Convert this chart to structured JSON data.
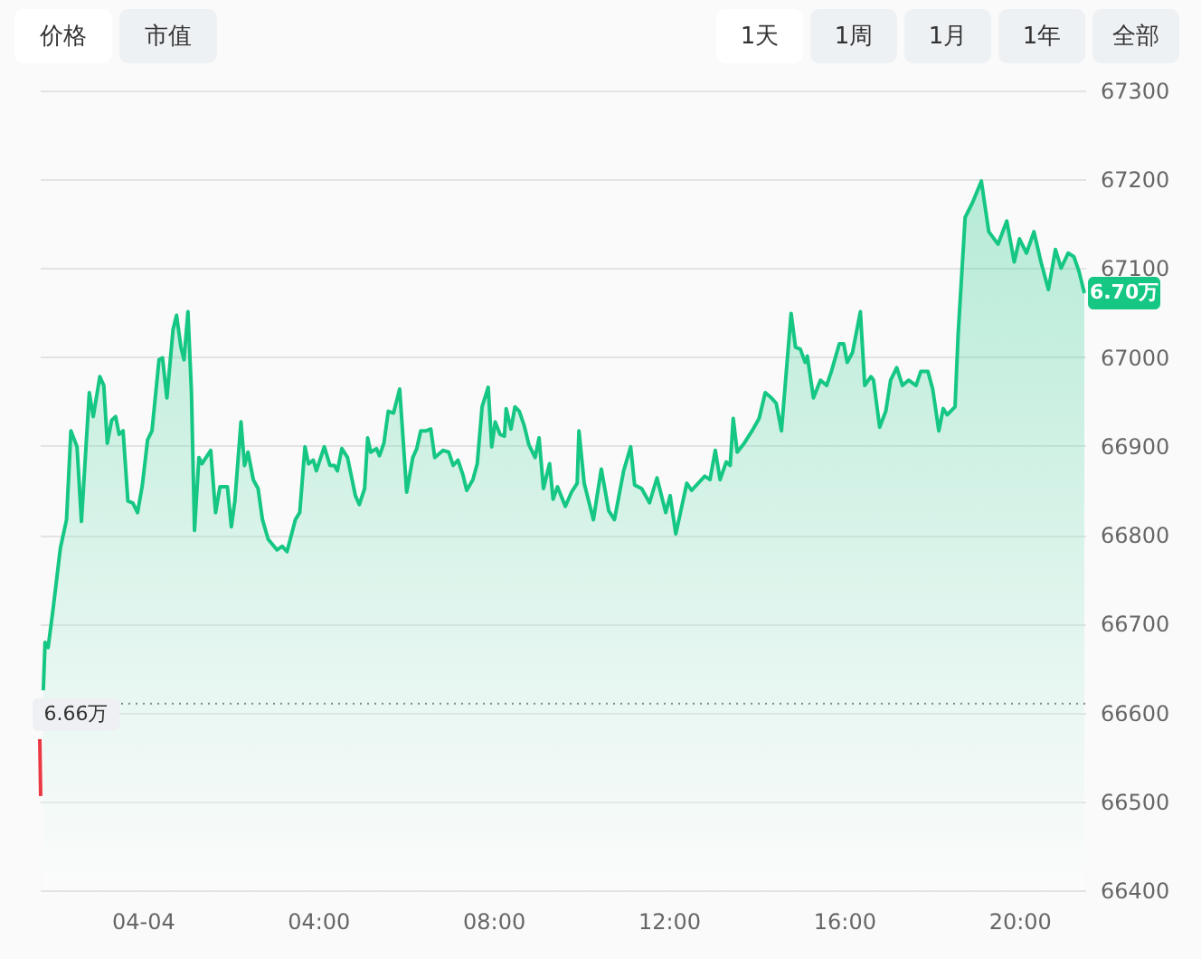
{
  "chart_data": {
    "type": "area",
    "grid": "y",
    "xlim": [
      -2.35,
      21.5
    ],
    "ylim": [
      66400,
      67300
    ],
    "xticks": [
      {
        "value": 0,
        "label": "04-04"
      },
      {
        "value": 4,
        "label": "04:00"
      },
      {
        "value": 8,
        "label": "08:00"
      },
      {
        "value": 12,
        "label": "12:00"
      },
      {
        "value": 16,
        "label": "16:00"
      },
      {
        "value": 20,
        "label": "20:00"
      }
    ],
    "yticks": [
      66400,
      66500,
      66600,
      66700,
      66800,
      66900,
      67000,
      67100,
      67200,
      67300
    ],
    "series": [
      {
        "color": "#16c784",
        "x": [
          -2.27,
          -2.23,
          -2.16,
          -2.05,
          -1.88,
          -1.74,
          -1.64,
          -1.5,
          -1.4,
          -1.22,
          -1.13,
          -0.98,
          -0.89,
          -0.81,
          -0.71,
          -0.62,
          -0.54,
          -0.45,
          -0.34,
          -0.23,
          -0.12,
          -0.01,
          0.11,
          0.21,
          0.37,
          0.45,
          0.55,
          0.69,
          0.77,
          0.87,
          0.94,
          1.03,
          1.11,
          1.18,
          1.28,
          1.35,
          1.55,
          1.66,
          1.76,
          1.93,
          2.02,
          2.1,
          2.24,
          2.32,
          2.4,
          2.52,
          2.63,
          2.73,
          2.86,
          3.06,
          3.18,
          3.29,
          3.48,
          3.58,
          3.7,
          3.78,
          3.89,
          3.96,
          4.14,
          4.27,
          4.37,
          4.44,
          4.54,
          4.67,
          4.85,
          4.94,
          5.06,
          5.13,
          5.2,
          5.33,
          5.4,
          5.5,
          5.6,
          5.72,
          5.86,
          5.95,
          6.02,
          6.16,
          6.25,
          6.34,
          6.47,
          6.57,
          6.66,
          6.85,
          6.98,
          7.08,
          7.19,
          7.3,
          7.39,
          7.53,
          7.63,
          7.74,
          7.88,
          7.96,
          8.04,
          8.15,
          8.25,
          8.29,
          8.4,
          8.49,
          8.59,
          8.7,
          8.81,
          8.95,
          9.04,
          9.14,
          9.28,
          9.36,
          9.46,
          9.64,
          9.78,
          9.91,
          9.95,
          10.07,
          10.28,
          10.46,
          10.63,
          10.76,
          10.97,
          11.13,
          11.22,
          11.38,
          11.56,
          11.73,
          11.93,
          12.03,
          12.16,
          12.41,
          12.52,
          12.82,
          12.94,
          13.06,
          13.17,
          13.31,
          13.4,
          13.47,
          13.56,
          13.72,
          13.9,
          14.06,
          14.2,
          14.34,
          14.45,
          14.57,
          14.79,
          14.89,
          15.0,
          15.11,
          15.16,
          15.3,
          15.46,
          15.6,
          15.71,
          15.89,
          15.99,
          16.07,
          16.19,
          16.37,
          16.47,
          16.61,
          16.67,
          16.81,
          16.95,
          17.06,
          17.2,
          17.33,
          17.47,
          17.64,
          17.75,
          17.91,
          18.02,
          18.16,
          18.26,
          18.35,
          18.53,
          18.6,
          18.76,
          18.93,
          19.13,
          19.3,
          19.51,
          19.71,
          19.88,
          20.0,
          20.16,
          20.33,
          20.49,
          20.66,
          20.82,
          20.95,
          21.11,
          21.24,
          21.36,
          21.48
        ],
        "values": [
          66625,
          66679,
          66673,
          66715,
          66785,
          66817,
          66917,
          66899,
          66815,
          66960,
          66933,
          66978,
          66968,
          66903,
          66929,
          66933,
          66913,
          66917,
          66838,
          66836,
          66825,
          66856,
          66907,
          66917,
          66997,
          66999,
          66954,
          67031,
          67047,
          67011,
          66997,
          67051,
          66960,
          66805,
          66887,
          66880,
          66895,
          66825,
          66854,
          66854,
          66809,
          66838,
          66927,
          66878,
          66893,
          66862,
          66852,
          66817,
          66795,
          66783,
          66787,
          66781,
          66817,
          66825,
          66899,
          66880,
          66884,
          66872,
          66899,
          66878,
          66878,
          66872,
          66897,
          66887,
          66844,
          66834,
          66852,
          66909,
          66893,
          66897,
          66889,
          66903,
          66939,
          66937,
          66964,
          66899,
          66848,
          66887,
          66897,
          66917,
          66917,
          66919,
          66887,
          66895,
          66893,
          66878,
          66884,
          66868,
          66850,
          66862,
          66880,
          66944,
          66966,
          66899,
          66927,
          66913,
          66911,
          66942,
          66919,
          66944,
          66939,
          66923,
          66901,
          66887,
          66909,
          66852,
          66880,
          66840,
          66854,
          66832,
          66848,
          66858,
          66917,
          66858,
          66817,
          66874,
          66827,
          66817,
          66872,
          66899,
          66856,
          66852,
          66836,
          66864,
          66825,
          66844,
          66801,
          66858,
          66850,
          66866,
          66862,
          66895,
          66862,
          66882,
          66878,
          66931,
          66893,
          66903,
          66917,
          66931,
          66960,
          66954,
          66948,
          66917,
          67049,
          67011,
          67009,
          66994,
          67001,
          66954,
          66974,
          66968,
          66984,
          67015,
          67015,
          66994,
          67005,
          67051,
          66968,
          66978,
          66974,
          66921,
          66939,
          66974,
          66988,
          66968,
          66974,
          66968,
          66984,
          66984,
          66964,
          66917,
          66942,
          66935,
          66944,
          67025,
          67157,
          67174,
          67198,
          67141,
          67127,
          67153,
          67107,
          67133,
          67117,
          67141,
          67107,
          67076,
          67121,
          67100,
          67117,
          67113,
          67096,
          67072
        ]
      },
      {
        "type": "line",
        "color": "#ea3943",
        "x": [
          -2.35,
          -2.33
        ],
        "values": [
          66570,
          66506
        ]
      }
    ],
    "ref_lines": [
      {
        "axis": "y",
        "value": 66610,
        "label": "6.66万",
        "line_style": "dotted",
        "color": "#888888"
      }
    ],
    "annotations": [
      "价格",
      "市值",
      "1天",
      "1周",
      "1月",
      "1年",
      "全部",
      {
        "text": "6.70万",
        "x": 21.48,
        "y": 67072
      }
    ]
  }
}
